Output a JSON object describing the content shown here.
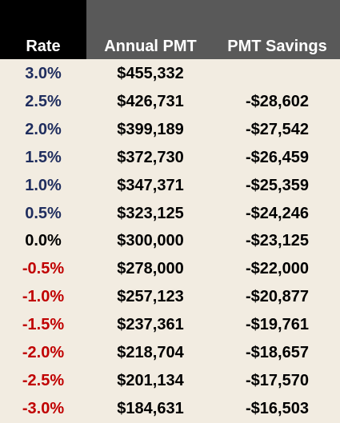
{
  "table": {
    "header": [
      "Rate",
      "Annual PMT",
      "PMT Savings"
    ],
    "rows": [
      [
        "3.0%",
        "$455,332",
        null
      ],
      [
        "2.5%",
        "$426,731",
        "-$28,602"
      ],
      [
        "2.0%",
        "$399,189",
        "-$27,542"
      ],
      [
        "1.5%",
        "$372,730",
        "-$26,459"
      ],
      [
        "1.0%",
        "$347,371",
        "-$25,359"
      ],
      [
        "0.5%",
        "$323,125",
        "-$24,246"
      ],
      [
        "0.0%",
        "$300,000",
        "-$23,125"
      ],
      [
        "-0.5%",
        "$278,000",
        "-$22,000"
      ],
      [
        "-1.0%",
        "$257,123",
        "-$20,877"
      ],
      [
        "-1.5%",
        "$237,361",
        "-$19,761"
      ],
      [
        "-2.0%",
        "$218,704",
        "-$18,657"
      ],
      [
        "-2.5%",
        "$201,134",
        "-$17,570"
      ],
      [
        "-3.0%",
        "$184,631",
        "-$16,503"
      ]
    ]
  }
}
